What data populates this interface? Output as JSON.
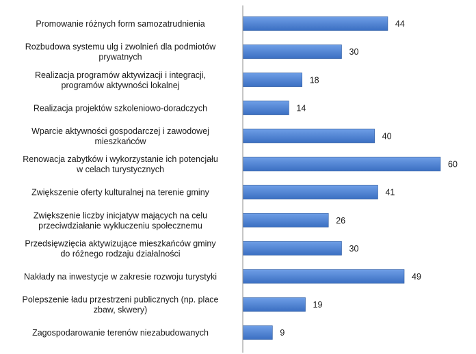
{
  "chart_data": {
    "type": "bar",
    "orientation": "horizontal",
    "categories": [
      [
        "Promowanie różnych form samozatrudnienia"
      ],
      [
        "Rozbudowa systemu ulg i zwolnień dla podmiotów",
        "prywatnych"
      ],
      [
        "Realizacja programów aktywizacji i integracji,",
        "programów aktywności lokalnej"
      ],
      [
        "Realizacja projektów szkoleniowo-doradczych"
      ],
      [
        "Wparcie aktywności gospodarczej i zawodowej",
        "mieszkańców"
      ],
      [
        "Renowacja zabytków i wykorzystanie ich potencjału",
        "w celach turystycznych"
      ],
      [
        "Zwiększenie oferty kulturalnej na terenie gminy"
      ],
      [
        "Zwiększenie liczby inicjatyw mających na celu",
        "przeciwdziałanie wykluczeniu społecznemu"
      ],
      [
        "Przedsięwzięcia aktywizujące mieszkańców gminy",
        "do różnego rodzaju działalności"
      ],
      [
        "Nakłady na inwestycje w zakresie rozwoju turystyki"
      ],
      [
        "Polepszenie ładu przestrzeni publicznych (np. place",
        "zbaw, skwery)"
      ],
      [
        "Zagospodarowanie terenów niezabudowanych"
      ]
    ],
    "values": [
      44,
      30,
      18,
      14,
      40,
      60,
      41,
      26,
      30,
      49,
      19,
      9
    ],
    "xlim": [
      0,
      60
    ],
    "grid": false,
    "bar_color": "#3b6fc2",
    "bar_color_light": "#6e9ee6",
    "axis_color": "#8c8c8c"
  }
}
